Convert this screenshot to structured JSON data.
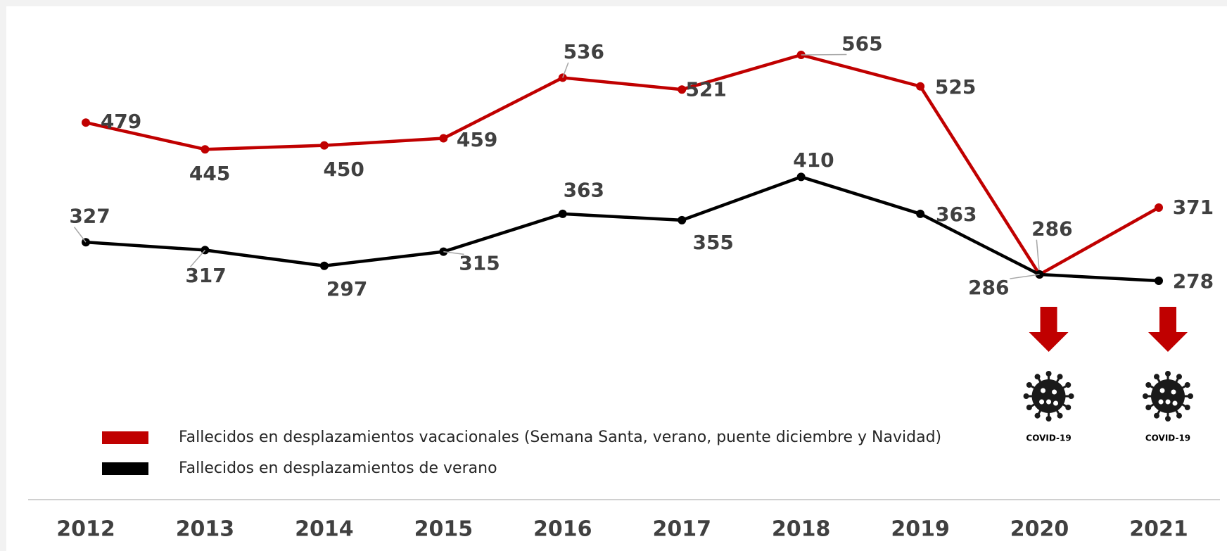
{
  "chart_data": {
    "type": "line",
    "categories": [
      "2012",
      "2013",
      "2014",
      "2015",
      "2016",
      "2017",
      "2018",
      "2019",
      "2020",
      "2021"
    ],
    "series": [
      {
        "name": "Fallecidos en desplazamientos vacacionales (Semana Santa, verano, puente diciembre y Navidad)",
        "color": "#c00000",
        "values": [
          479,
          445,
          450,
          459,
          536,
          521,
          565,
          525,
          286,
          371
        ]
      },
      {
        "name": "Fallecidos en desplazamientos de verano",
        "color": "#000000",
        "values": [
          327,
          317,
          297,
          315,
          363,
          355,
          410,
          363,
          286,
          278
        ]
      }
    ],
    "annotations": [
      "COVID-19",
      "COVID-19"
    ]
  }
}
